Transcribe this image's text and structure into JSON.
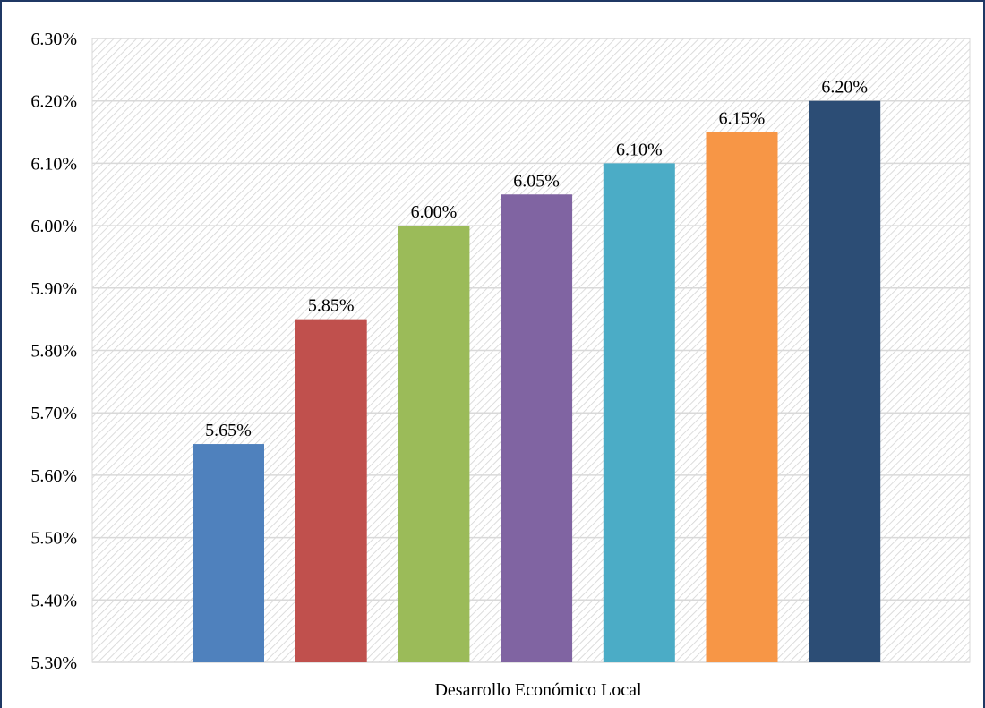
{
  "chart_data": {
    "type": "bar",
    "categories": [
      "Desarrollo Económico Local"
    ],
    "series": [
      {
        "values": [
          5.65
        ],
        "color": "#4f81bd"
      },
      {
        "values": [
          5.85
        ],
        "color": "#c0504d"
      },
      {
        "values": [
          6.0
        ],
        "color": "#9bbb59"
      },
      {
        "values": [
          6.05
        ],
        "color": "#8064a2"
      },
      {
        "values": [
          6.1
        ],
        "color": "#4bacc6"
      },
      {
        "values": [
          6.15
        ],
        "color": "#f79646"
      },
      {
        "values": [
          6.2
        ],
        "color": "#2c4d75"
      }
    ],
    "data_labels": [
      "5.65%",
      "5.85%",
      "6.00%",
      "6.05%",
      "6.10%",
      "6.15%",
      "6.20%"
    ],
    "ylim": [
      5.3,
      6.3
    ],
    "yticks": [
      5.3,
      5.4,
      5.5,
      5.6,
      5.7,
      5.8,
      5.9,
      6.0,
      6.1,
      6.2,
      6.3
    ],
    "ytick_labels": [
      "5.30%",
      "5.40%",
      "5.50%",
      "5.60%",
      "5.70%",
      "5.80%",
      "5.90%",
      "6.00%",
      "6.10%",
      "6.20%",
      "6.30%"
    ],
    "grid": true,
    "plot_background": "diagonal-hatch",
    "frame_color": "#1f3864"
  }
}
